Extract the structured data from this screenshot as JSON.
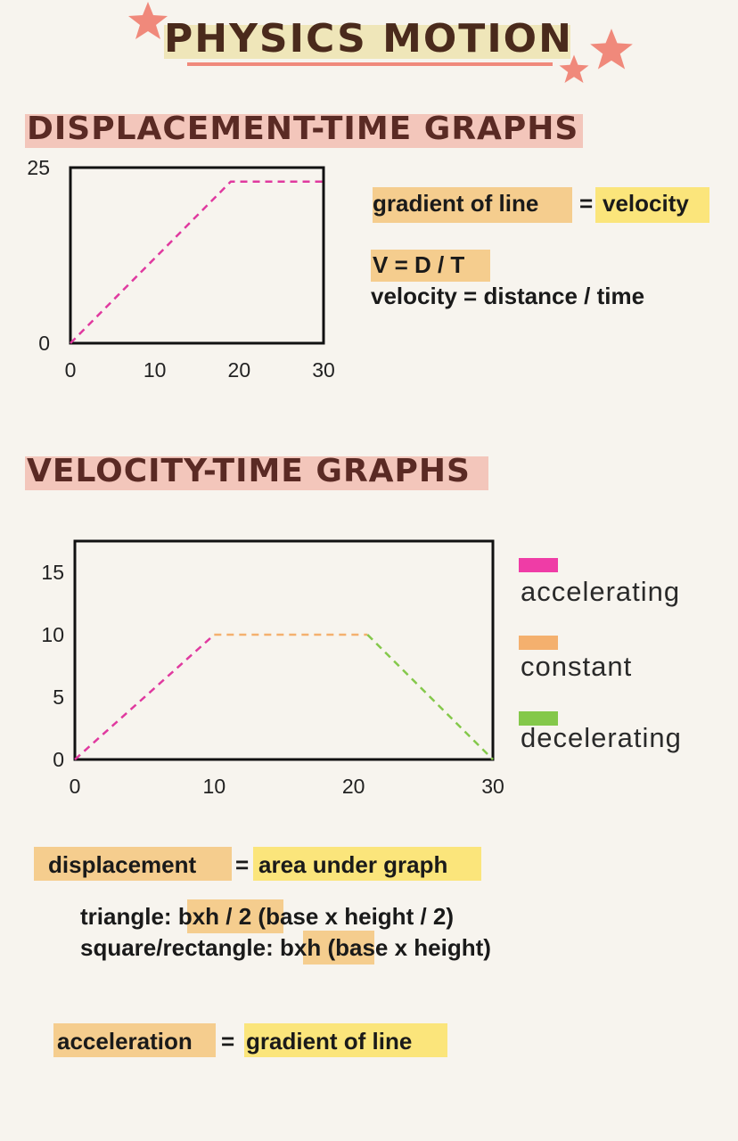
{
  "title": "PHYSICS MOTION",
  "sections": {
    "displacement_time": "DISPLACEMENT-TIME GRAPHS",
    "velocity_time": "VELOCITY-TIME GRAPHS"
  },
  "notes": {
    "gradient": "gradient of line",
    "equals": "=",
    "velocity": "velocity",
    "formula": "V = D / T",
    "formula_words": "velocity = distance / time",
    "displacement": "displacement",
    "area": "area under graph",
    "triangle_label": "triangle:",
    "triangle_formula": "bxh / 2",
    "triangle_words": "(base x height / 2)",
    "rect_label": "square/rectangle:",
    "rect_formula": "bxh",
    "rect_words": "(base x height)",
    "acceleration": "acceleration",
    "acc_gradient": "gradient of line"
  },
  "legend": [
    {
      "label": "accelerating",
      "color": "#ef3ca6"
    },
    {
      "label": "constant",
      "color": "#f4b06e"
    },
    {
      "label": "decelerating",
      "color": "#84c84a"
    }
  ],
  "chart_data": [
    {
      "type": "line",
      "x_ticks": [
        "0",
        "10",
        "20",
        "30"
      ],
      "y_ticks": [
        "0",
        "25"
      ],
      "xlim": [
        0,
        30
      ],
      "ylim": [
        0,
        25
      ],
      "series": [
        {
          "color": "#e0399f",
          "x": [
            0,
            19,
            30
          ],
          "y": [
            0,
            23,
            23
          ]
        }
      ]
    },
    {
      "type": "line",
      "x_ticks": [
        "0",
        "10",
        "20",
        "30"
      ],
      "y_ticks": [
        "0",
        "5",
        "10",
        "15"
      ],
      "xlim": [
        0,
        30
      ],
      "ylim": [
        0,
        17.5
      ],
      "series": [
        {
          "color": "#e0399f",
          "x": [
            0,
            10
          ],
          "y": [
            0,
            10
          ]
        },
        {
          "color": "#f4b06e",
          "x": [
            10,
            21
          ],
          "y": [
            10,
            10
          ]
        },
        {
          "color": "#84c84a",
          "x": [
            21,
            30
          ],
          "y": [
            10,
            0
          ]
        }
      ]
    }
  ]
}
